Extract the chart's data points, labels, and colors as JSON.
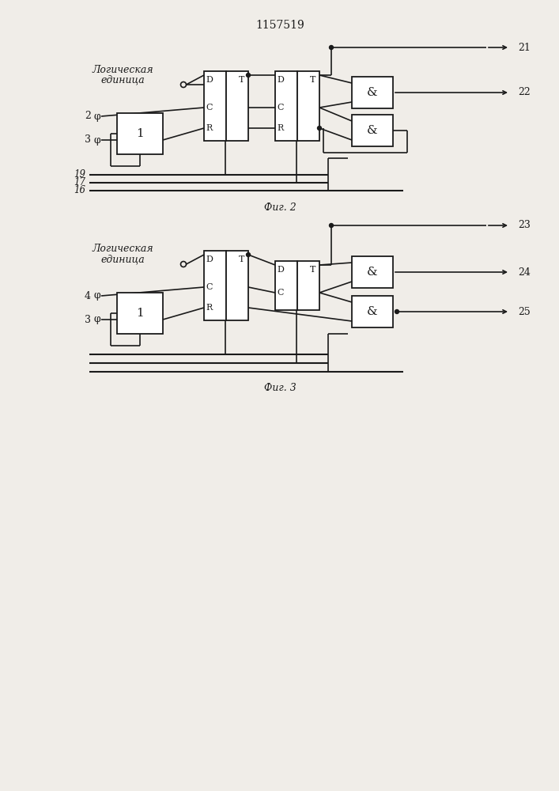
{
  "title": "1157519",
  "fig2_label": "Фиг. 2",
  "fig3_label": "Фиг. 3",
  "bg_color": "#f0ede8",
  "line_color": "#1a1a1a",
  "font_size_title": 10,
  "font_size_label": 8.5,
  "font_size_block": 7.5
}
